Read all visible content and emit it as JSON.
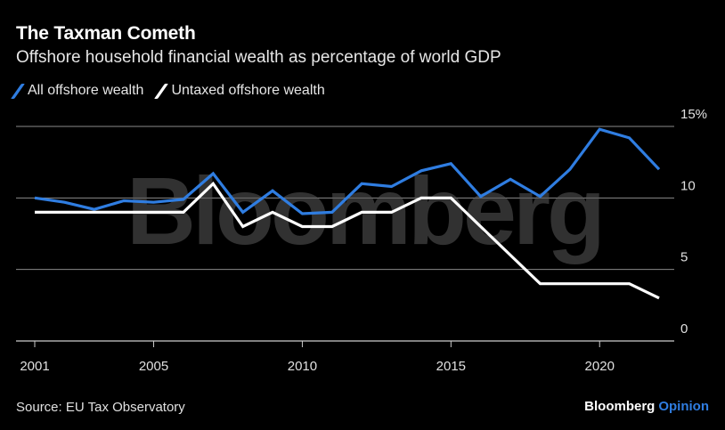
{
  "header": {
    "title": "The Taxman Cometh",
    "subtitle": "Offshore household financial wealth as percentage of world GDP"
  },
  "footer": {
    "source": "Source: EU Tax Observatory",
    "brand_main": "Bloomberg",
    "brand_accent": "Opinion"
  },
  "watermark": "Bloomberg",
  "colors": {
    "background": "#000000",
    "all_offshore": "#2f7de1",
    "untaxed_offshore": "#ffffff",
    "gridline": "#8a8a8a"
  },
  "chart_data": {
    "type": "line",
    "x": [
      2001,
      2002,
      2003,
      2004,
      2005,
      2006,
      2007,
      2008,
      2009,
      2010,
      2011,
      2012,
      2013,
      2014,
      2015,
      2016,
      2017,
      2018,
      2019,
      2020,
      2021,
      2022
    ],
    "series": [
      {
        "name": "All offshore wealth",
        "color": "#2f7de1",
        "values": [
          10.0,
          9.7,
          9.2,
          9.8,
          9.7,
          9.9,
          11.7,
          9.0,
          10.5,
          8.9,
          9.0,
          11.0,
          10.8,
          11.9,
          12.4,
          10.1,
          11.3,
          10.1,
          12.0,
          14.8,
          14.2,
          12.0
        ]
      },
      {
        "name": "Untaxed offshore wealth",
        "color": "#ffffff",
        "values": [
          9.0,
          9.0,
          9.0,
          9.0,
          9.0,
          9.0,
          11.0,
          8.0,
          9.0,
          8.0,
          8.0,
          9.0,
          9.0,
          10.0,
          10.0,
          8.0,
          6.0,
          4.0,
          4.0,
          4.0,
          4.0,
          3.0
        ]
      }
    ],
    "xticks": [
      2001,
      2005,
      2010,
      2015,
      2020
    ],
    "xtick_labels": [
      "2001",
      "2005",
      "2010",
      "2015",
      "2020"
    ],
    "yticks": [
      0,
      5,
      10,
      15
    ],
    "ytick_labels": [
      "0",
      "5",
      "10",
      "15%"
    ],
    "xlim": [
      2001,
      2022
    ],
    "ylim": [
      0,
      15
    ],
    "grid": "horizontal",
    "legend": "top-left"
  }
}
